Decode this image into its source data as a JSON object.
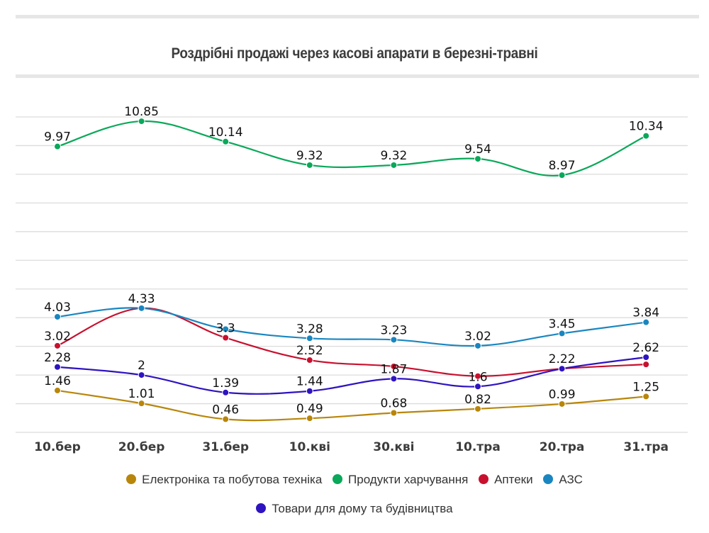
{
  "chart_data": {
    "type": "line",
    "title": "Роздрібні продажі через касові апарати в березні-травні",
    "xlabel": "",
    "ylabel": "",
    "ylim": [
      0,
      11
    ],
    "grid": true,
    "smooth": true,
    "legend_position": "bottom",
    "categories": [
      "10.бер",
      "20.бер",
      "31.бер",
      "10.кві",
      "30.кві",
      "10.тра",
      "20.тра",
      "31.тра"
    ],
    "series": [
      {
        "name": "Продукти харчування",
        "color": "#0aa85a",
        "values": [
          9.97,
          10.85,
          10.14,
          9.32,
          9.32,
          9.54,
          8.97,
          10.34
        ],
        "labels": [
          "9.97",
          "10.85",
          "10.14",
          "9.32",
          "9.32",
          "9.54",
          "8.97",
          "10.34"
        ]
      },
      {
        "name": "АЗС",
        "color": "#1a86c0",
        "values": [
          4.03,
          4.33,
          3.6,
          3.28,
          3.23,
          3.02,
          3.45,
          3.84
        ],
        "labels": [
          "4.03",
          "4.33",
          "",
          "3.28",
          "3.23",
          "3.02",
          "3.45",
          "3.84"
        ]
      },
      {
        "name": "Аптеки",
        "color": "#c8102e",
        "values": [
          3.02,
          4.33,
          3.3,
          2.52,
          2.3,
          1.96,
          2.22,
          2.37
        ],
        "labels": [
          "3.02",
          "",
          "3.3",
          "2.52",
          "",
          "",
          "",
          ""
        ]
      },
      {
        "name": "Товари для дому та будівництва",
        "color": "#2e14c0",
        "values": [
          2.28,
          2.0,
          1.39,
          1.44,
          1.87,
          1.6,
          2.22,
          2.62
        ],
        "labels": [
          "2.28",
          "2",
          "1.39",
          "1.44",
          "1.87",
          "1.6",
          "2.22",
          "2.62"
        ]
      },
      {
        "name": "Електроніка та побутова техніка",
        "color": "#b8860b",
        "values": [
          1.46,
          1.01,
          0.46,
          0.49,
          0.68,
          0.82,
          0.99,
          1.25
        ],
        "labels": [
          "1.46",
          "1.01",
          "0.46",
          "0.49",
          "0.68",
          "0.82",
          "0.99",
          "1.25"
        ]
      }
    ]
  },
  "legend": {
    "row1": [
      {
        "label": "Електроніка та побутова техніка",
        "color": "#b8860b"
      },
      {
        "label": "Продукти харчування",
        "color": "#0aa85a"
      },
      {
        "label": "Аптеки",
        "color": "#c8102e"
      },
      {
        "label": "АЗС",
        "color": "#1a86c0"
      }
    ],
    "row2": [
      {
        "label": "Товари для дому та будівництва",
        "color": "#2e14c0"
      }
    ]
  }
}
